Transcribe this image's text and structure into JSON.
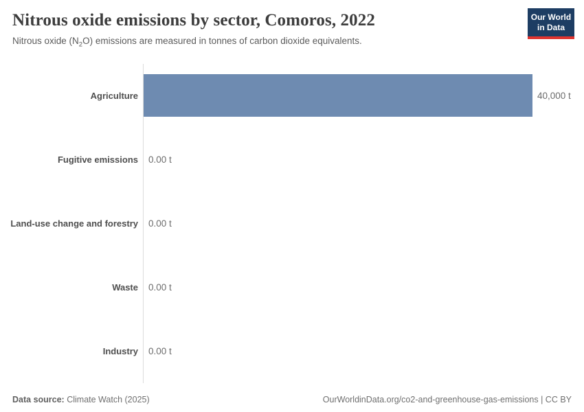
{
  "header": {
    "title": "Nitrous oxide emissions by sector, Comoros, 2022",
    "subtitle_pre": "Nitrous oxide (N",
    "subtitle_sub": "2",
    "subtitle_post": "O) emissions are measured in tonnes of carbon dioxide equivalents.",
    "logo_line1": "Our World",
    "logo_line2": "in Data",
    "logo_bg": "#1d3d63",
    "logo_accent": "#e0342f"
  },
  "chart_data": {
    "type": "bar",
    "orientation": "horizontal",
    "title": "Nitrous oxide emissions by sector, Comoros, 2022",
    "unit": "t",
    "categories": [
      "Agriculture",
      "Fugitive emissions",
      "Land-use change and forestry",
      "Waste",
      "Industry"
    ],
    "values": [
      40000,
      0,
      0,
      0,
      0
    ],
    "value_labels": [
      "40,000 t",
      "0.00 t",
      "0.00 t",
      "0.00 t",
      "0.00 t"
    ],
    "xlim": [
      0,
      40000
    ],
    "bar_color": "#6E8BB1",
    "axis_line_color": "#dcdcdc",
    "grid": false,
    "legend": "none"
  },
  "footer": {
    "datasource_label": "Data source:",
    "datasource_value": "Climate Watch (2025)",
    "right_text": "OurWorldinData.org/co2-and-greenhouse-gas-emissions | CC BY"
  }
}
